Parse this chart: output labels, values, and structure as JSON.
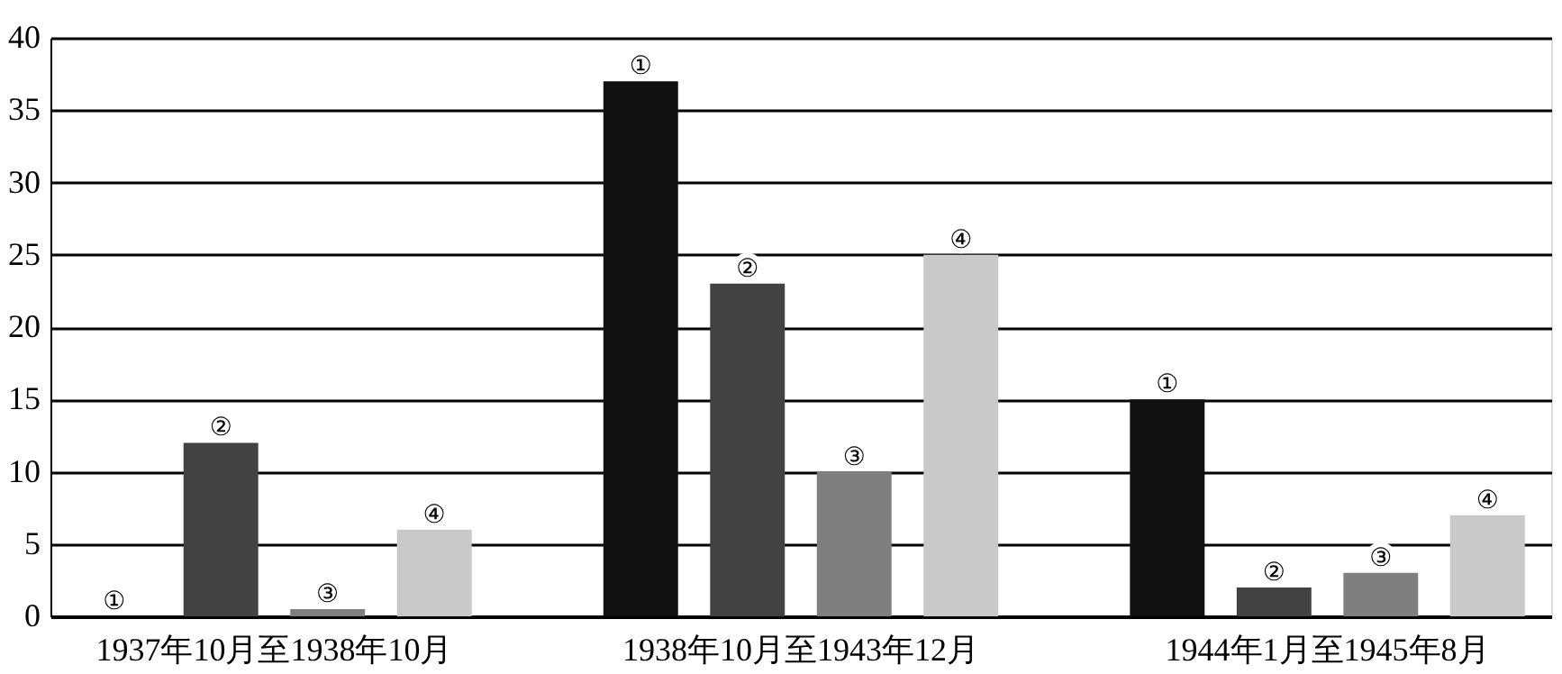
{
  "chart_data": {
    "type": "bar",
    "categories": [
      "1937年10月至1938年10月",
      "1938年10月至1943年12月",
      "1944年1月至1945年8月"
    ],
    "series": [
      {
        "name": "①",
        "color": "#111111",
        "values": [
          0,
          37,
          15
        ]
      },
      {
        "name": "②",
        "color": "#424242",
        "values": [
          12,
          23,
          2
        ]
      },
      {
        "name": "③",
        "color": "#7f7f7f",
        "values": [
          0.5,
          10,
          3
        ]
      },
      {
        "name": "④",
        "color": "#c9c9c9",
        "values": [
          6,
          25,
          7
        ]
      }
    ],
    "ylim": [
      0,
      40
    ],
    "yticks": [
      0,
      5,
      10,
      15,
      20,
      25,
      30,
      35,
      40
    ],
    "grid": "y",
    "legend": false
  }
}
